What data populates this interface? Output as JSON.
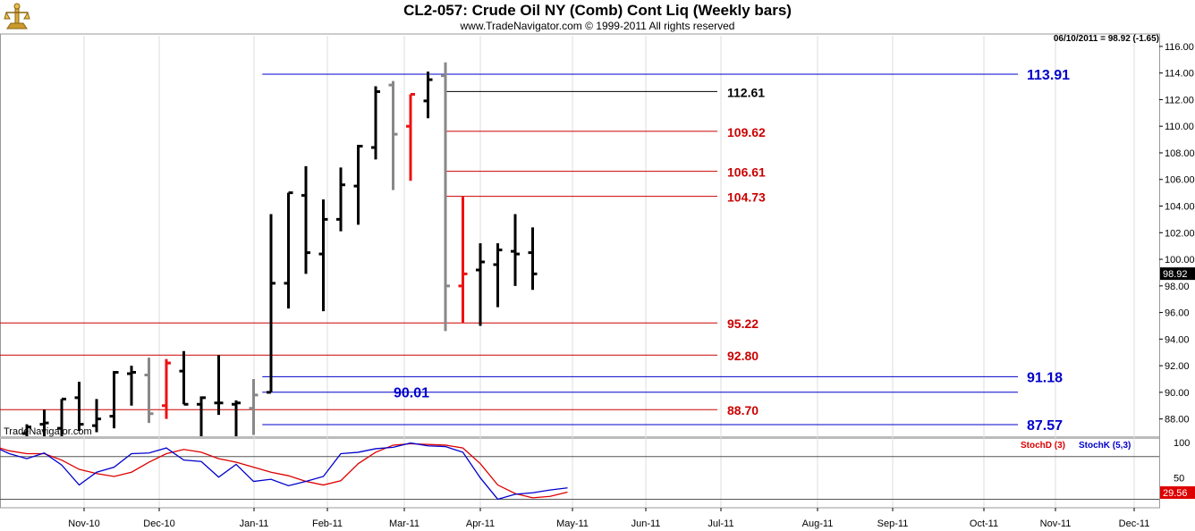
{
  "title": "CL2-057:  Crude Oil NY (Comb) Cont Liq  (Weekly bars)",
  "subtitle": "www.TradeNavigator.com © 1999-2011 All rights reserved",
  "watermark": "TradeNavigator.com",
  "chart_data": [
    {
      "type": "ohlc",
      "ylim": [
        86.7,
        116.8
      ],
      "grid": "vertical",
      "price_tag": "98.92",
      "last_quote": "06/10/2011 = 98.92 (-1.65)",
      "y_ticks": [
        "116.00",
        "114.00",
        "112.00",
        "110.00",
        "108.00",
        "106.00",
        "104.00",
        "102.00",
        "100.00",
        "98.00",
        "96.00",
        "94.00",
        "92.00",
        "90.00",
        "88.00"
      ],
      "x_ticks": [
        "Nov-10",
        "Dec-10",
        "Jan-11",
        "Feb-11",
        "Mar-11",
        "Apr-11",
        "May-11",
        "Jun-11",
        "Jul-11",
        "Aug-11",
        "Sep-11",
        "Oct-11",
        "Nov-11",
        "Dec-11"
      ],
      "colors": {
        "bar": "#000000",
        "gray": "#888888",
        "red": "#ee1111",
        "blue": "#0000cc",
        "level_red": "#cc0000",
        "level_blue": "#0000cc"
      },
      "bars": [
        {
          "o": 86.9,
          "h": 87.6,
          "l": 86.4,
          "c": 87.4,
          "color": "bar"
        },
        {
          "o": 87.6,
          "h": 88.7,
          "l": 86.5,
          "c": 87.7,
          "color": "bar"
        },
        {
          "o": 87.3,
          "h": 89.5,
          "l": 86.4,
          "c": 89.5,
          "color": "bar"
        },
        {
          "o": 89.6,
          "h": 90.8,
          "l": 87.1,
          "c": 87.6,
          "color": "bar"
        },
        {
          "o": 87.5,
          "h": 89.5,
          "l": 87.0,
          "c": 88.0,
          "color": "bar"
        },
        {
          "o": 88.2,
          "h": 91.6,
          "l": 87.3,
          "c": 91.5,
          "color": "bar"
        },
        {
          "o": 91.4,
          "h": 92.0,
          "l": 89.0,
          "c": 91.5,
          "color": "bar"
        },
        {
          "o": 91.3,
          "h": 92.6,
          "l": 87.7,
          "c": 88.4,
          "color": "gray"
        },
        {
          "o": 89.0,
          "h": 92.5,
          "l": 88.0,
          "c": 92.2,
          "color": "red"
        },
        {
          "o": 91.6,
          "h": 93.1,
          "l": 89.1,
          "c": 89.1,
          "color": "bar"
        },
        {
          "o": 89.1,
          "h": 89.7,
          "l": 86.5,
          "c": 89.6,
          "color": "bar"
        },
        {
          "o": 89.2,
          "h": 92.8,
          "l": 88.3,
          "c": 89.2,
          "color": "bar"
        },
        {
          "o": 89.1,
          "h": 89.4,
          "l": 86.5,
          "c": 89.2,
          "color": "bar"
        },
        {
          "o": 88.8,
          "h": 91.0,
          "l": 86.8,
          "c": 89.8,
          "color": "gray"
        },
        {
          "o": 90.0,
          "h": 103.4,
          "l": 90.0,
          "c": 98.2,
          "color": "bar"
        },
        {
          "o": 98.2,
          "h": 105.0,
          "l": 96.3,
          "c": 105.0,
          "color": "bar"
        },
        {
          "o": 104.8,
          "h": 107.0,
          "l": 98.9,
          "c": 100.5,
          "color": "bar"
        },
        {
          "o": 100.4,
          "h": 104.5,
          "l": 96.1,
          "c": 103.0,
          "color": "bar"
        },
        {
          "o": 103.0,
          "h": 106.9,
          "l": 102.1,
          "c": 105.6,
          "color": "bar"
        },
        {
          "o": 105.5,
          "h": 108.6,
          "l": 102.6,
          "c": 108.5,
          "color": "bar"
        },
        {
          "o": 108.4,
          "h": 113.0,
          "l": 107.5,
          "c": 112.6,
          "color": "bar"
        },
        {
          "o": 113.1,
          "h": 113.4,
          "l": 105.2,
          "c": 109.4,
          "color": "gray"
        },
        {
          "o": 110.0,
          "h": 112.4,
          "l": 105.9,
          "c": 112.4,
          "color": "red"
        },
        {
          "o": 111.9,
          "h": 114.1,
          "l": 110.6,
          "c": 113.5,
          "color": "bar"
        },
        {
          "o": 113.8,
          "h": 114.8,
          "l": 94.6,
          "c": 98.0,
          "color": "gray"
        },
        {
          "o": 98.0,
          "h": 104.7,
          "l": 95.2,
          "c": 98.9,
          "color": "red"
        },
        {
          "o": 99.2,
          "h": 101.2,
          "l": 95.0,
          "c": 99.8,
          "color": "bar"
        },
        {
          "o": 99.6,
          "h": 101.2,
          "l": 96.4,
          "c": 100.7,
          "color": "bar"
        },
        {
          "o": 100.6,
          "h": 103.4,
          "l": 98.0,
          "c": 100.4,
          "color": "bar"
        },
        {
          "o": 100.5,
          "h": 102.4,
          "l": 97.7,
          "c": 98.9,
          "color": "bar"
        }
      ],
      "levels": [
        {
          "value": 113.91,
          "label": "113.91",
          "color": "level_blue",
          "from_bar": 13.5,
          "bold": true
        },
        {
          "value": 112.61,
          "label": "112.61",
          "color": "bar",
          "from_bar": 24,
          "bold": false
        },
        {
          "value": 109.62,
          "label": "109.62",
          "color": "level_red",
          "from_bar": 24,
          "bold": false
        },
        {
          "value": 106.61,
          "label": "106.61",
          "color": "level_red",
          "from_bar": 24,
          "bold": false
        },
        {
          "value": 104.73,
          "label": "104.73",
          "color": "level_red",
          "from_bar": 24,
          "bold": false
        },
        {
          "value": 95.22,
          "label": "95.22",
          "color": "level_red",
          "from_bar": -2,
          "bold": false
        },
        {
          "value": 92.8,
          "label": "92.80",
          "color": "level_red",
          "from_bar": -2,
          "bold": false
        },
        {
          "value": 91.18,
          "label": "91.18",
          "color": "level_blue",
          "from_bar": 13.5,
          "bold": true
        },
        {
          "value": 90.01,
          "label": "90.01",
          "color": "level_blue",
          "from_bar": 13.5,
          "bold": true
        },
        {
          "value": 88.7,
          "label": "88.70",
          "color": "level_red",
          "from_bar": -2,
          "bold": false
        },
        {
          "value": 87.57,
          "label": "87.57",
          "color": "level_blue",
          "from_bar": 13.5,
          "bold": true
        }
      ]
    },
    {
      "type": "line",
      "ylim": [
        8,
        106
      ],
      "y_ticks": [
        "100",
        "50"
      ],
      "reference_lines": [
        80,
        20
      ],
      "value_tag": "29.56",
      "series": [
        {
          "name": "StochD (3)",
          "color": "#dd0000",
          "values": [
            95,
            88,
            84,
            84,
            75,
            62,
            56,
            52,
            58,
            72,
            84,
            90,
            86,
            77,
            72,
            65,
            58,
            53,
            45,
            40,
            46,
            70,
            86,
            96,
            98,
            97,
            96,
            92,
            70,
            40,
            28,
            22,
            24,
            30
          ]
        },
        {
          "name": "StochK (5,3)",
          "color": "#0000cc",
          "values": [
            95,
            84,
            77,
            85,
            68,
            40,
            58,
            65,
            84,
            85,
            92,
            75,
            73,
            51,
            69,
            45,
            48,
            39,
            45,
            52,
            84,
            86,
            91,
            93,
            99,
            95,
            94,
            86,
            50,
            20,
            27,
            29,
            33,
            36
          ]
        }
      ]
    }
  ]
}
